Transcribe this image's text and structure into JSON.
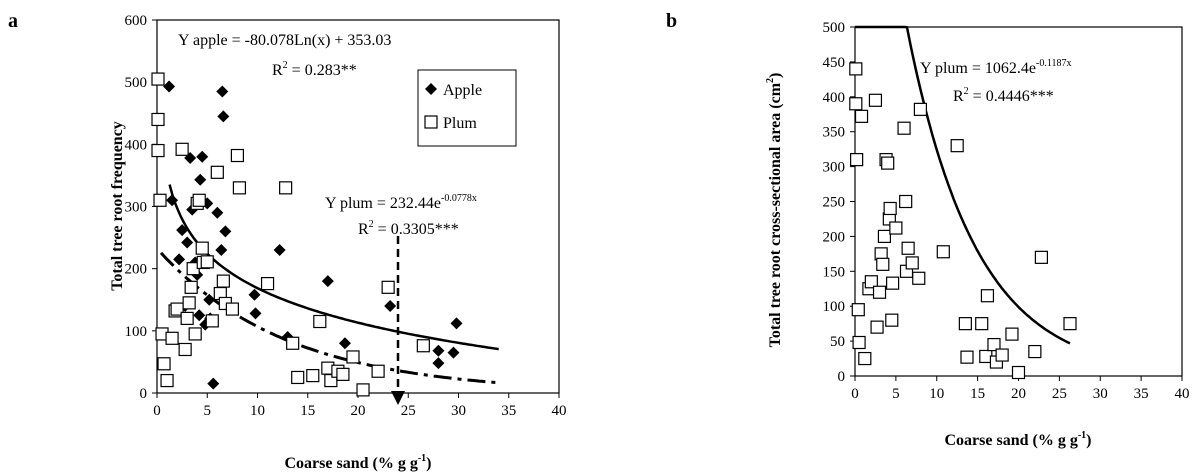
{
  "panels": {
    "a": {
      "letter": "a"
    },
    "b": {
      "letter": "b"
    }
  },
  "chart_data": [
    {
      "type": "scatter",
      "panel": "a",
      "xlabel": "Coarse sand (% g g-1)",
      "xlabel_main": "Coarse sand (% g g",
      "xlabel_sup": "-1",
      "xlabel_end": ")",
      "ylabel": "Total tree root frequency",
      "xlim": [
        0,
        40
      ],
      "ylim": [
        0,
        600
      ],
      "xticks": [
        0,
        5,
        10,
        15,
        20,
        25,
        30,
        35,
        40
      ],
      "yticks": [
        0,
        100,
        200,
        300,
        400,
        500,
        600
      ],
      "legend": {
        "position": "top-right",
        "items": [
          "Apple",
          "Plum"
        ]
      },
      "annotations": {
        "apple_eq": "Y apple = -80.078Ln(x) + 353.03",
        "apple_r2": "R2 = 0.283**",
        "apple_r2_main": "R",
        "apple_r2_sup": "2",
        "apple_r2_end": " = 0.283**",
        "plum_eq": "Y plum = 232.44e-0.0778x",
        "plum_eq_main": "Y plum = 232.44e",
        "plum_eq_sup": "-0.0778x",
        "plum_r2": "R2 = 0.3305***",
        "plum_r2_main": "R",
        "plum_r2_sup": "2",
        "plum_r2_end": " = 0.3305***"
      },
      "series": [
        {
          "name": "Apple",
          "marker": "diamond",
          "x": [
            1.2,
            1.5,
            2.2,
            2.5,
            2.8,
            3.0,
            3.3,
            3.5,
            3.8,
            4.0,
            4.2,
            4.3,
            4.5,
            4.8,
            5.0,
            5.2,
            5.3,
            5.6,
            6.0,
            6.4,
            6.5,
            6.6,
            6.8,
            9.7,
            9.8,
            12.2,
            13.0,
            17.0,
            18.7,
            23.2,
            28.0,
            28.0,
            29.5,
            29.8
          ],
          "y": [
            493,
            310,
            215,
            262,
            140,
            242,
            378,
            295,
            210,
            190,
            125,
            343,
            380,
            110,
            305,
            150,
            120,
            15,
            290,
            230,
            485,
            445,
            260,
            158,
            128,
            230,
            90,
            180,
            80,
            140,
            48,
            68,
            65,
            112
          ]
        },
        {
          "name": "Plum",
          "marker": "square",
          "x": [
            0.1,
            0.1,
            0.1,
            0.3,
            0.5,
            0.7,
            1.0,
            1.5,
            1.8,
            2.0,
            2.5,
            2.8,
            3.0,
            3.2,
            3.4,
            3.6,
            3.8,
            4.0,
            4.2,
            4.5,
            4.6,
            5.0,
            5.5,
            6.0,
            6.3,
            6.6,
            6.8,
            7.5,
            8.0,
            8.2,
            11.0,
            12.8,
            13.5,
            14.0,
            15.5,
            16.2,
            17.0,
            17.3,
            18.0,
            18.5,
            19.5,
            20.5,
            22.0,
            23.0,
            26.5
          ],
          "y": [
            505,
            440,
            390,
            310,
            95,
            47,
            20,
            88,
            132,
            135,
            392,
            70,
            120,
            145,
            170,
            200,
            95,
            305,
            310,
            233,
            210,
            211,
            116,
            355,
            160,
            180,
            144,
            135,
            382,
            330,
            176,
            330,
            80,
            25,
            28,
            115,
            40,
            20,
            35,
            30,
            58,
            5,
            35,
            170,
            76
          ]
        }
      ],
      "fits": [
        {
          "name": "Y apple",
          "model": "log",
          "a": -80.078,
          "b": 353.03,
          "x_range": [
            1.25,
            34
          ]
        },
        {
          "name": "Y plum",
          "model": "exp",
          "a": 232.44,
          "b": -0.0778,
          "x_range": [
            0.4,
            34
          ]
        }
      ]
    },
    {
      "type": "scatter",
      "panel": "b",
      "xlabel": "Coarse sand (% g g-1)",
      "xlabel_main": "Coarse sand (% g g",
      "xlabel_sup": "-1",
      "xlabel_end": ")",
      "ylabel": "Total tree root cross-sectional area (cm2)",
      "ylabel_main": "Total tree root cross-sectional area (cm",
      "ylabel_sup": "2",
      "ylabel_end": ")",
      "xlim": [
        0,
        40
      ],
      "ylim": [
        0,
        500
      ],
      "xticks": [
        0,
        5,
        10,
        15,
        20,
        25,
        30,
        35,
        40
      ],
      "yticks": [
        0,
        50,
        100,
        150,
        200,
        250,
        300,
        350,
        400,
        450,
        500
      ],
      "annotations": {
        "plum_eq": "Y plum = 1062.4e-0.1187x",
        "plum_eq_main": "Y plum = 1062.4e",
        "plum_eq_sup": "-0.1187x",
        "plum_r2": "R2 = 0.4446***",
        "plum_r2_main": "R",
        "plum_r2_sup": "2",
        "plum_r2_end": " = 0.4446***"
      },
      "series": [
        {
          "name": "Plum",
          "marker": "square",
          "x": [
            0.1,
            0.1,
            0.2,
            0.4,
            0.5,
            0.8,
            1.2,
            1.7,
            2.0,
            2.5,
            2.7,
            3.0,
            3.2,
            3.4,
            3.6,
            3.8,
            4.0,
            4.2,
            4.3,
            4.5,
            4.6,
            5.0,
            6.0,
            6.2,
            6.3,
            6.5,
            7.0,
            7.8,
            8.0,
            10.8,
            12.5,
            13.5,
            13.7,
            15.5,
            16.0,
            16.2,
            17.0,
            17.3,
            18.0,
            19.2,
            20.0,
            22.0,
            22.8,
            26.3
          ],
          "y": [
            440,
            390,
            310,
            95,
            48,
            372,
            25,
            125,
            135,
            395,
            70,
            120,
            175,
            160,
            200,
            310,
            305,
            225,
            240,
            80,
            133,
            212,
            355,
            250,
            150,
            183,
            162,
            140,
            382,
            178,
            330,
            75,
            27,
            75,
            28,
            115,
            45,
            20,
            30,
            60,
            5,
            35,
            170,
            75
          ]
        }
      ],
      "fits": [
        {
          "name": "Y plum",
          "model": "exp",
          "a": 1062.4,
          "b": -0.1187,
          "x_range": [
            0,
            26.3
          ]
        }
      ]
    }
  ]
}
